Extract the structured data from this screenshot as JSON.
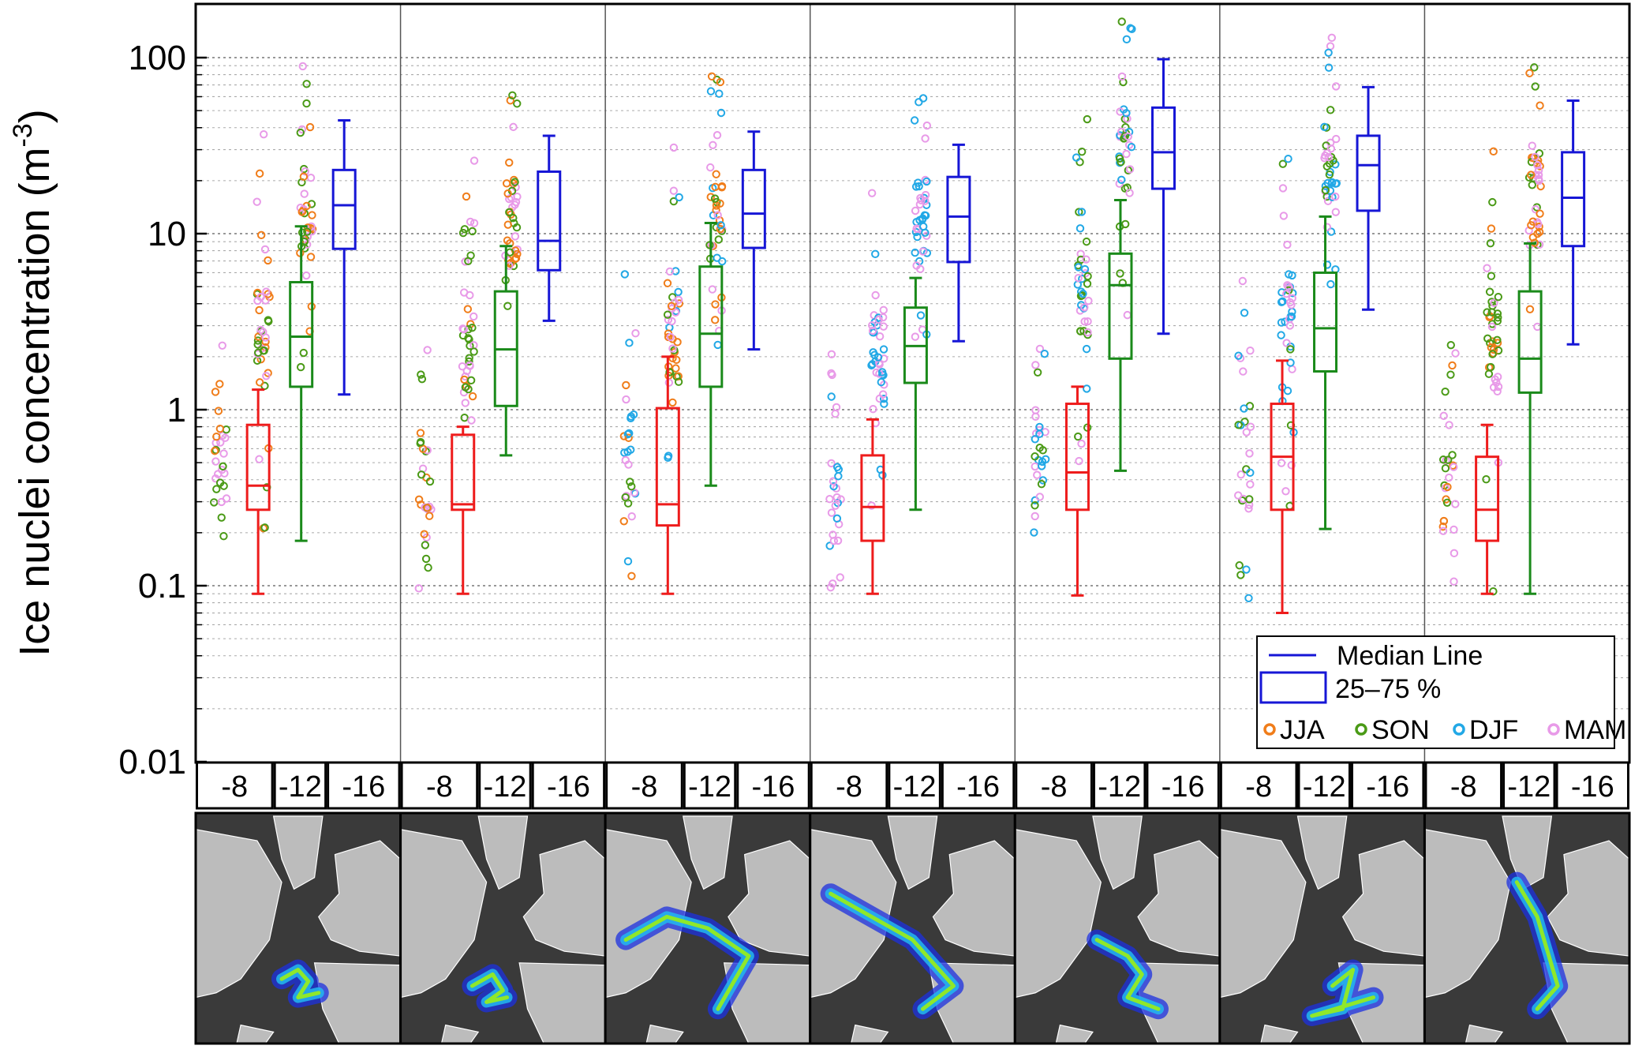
{
  "chart_data": {
    "type": "box",
    "ylabel": "Ice nuclei concentration (m",
    "ylabel_sup": "-3",
    "ylabel_end": ")",
    "yscale": "log",
    "ylim": [
      0.01,
      200
    ],
    "yticks": [
      {
        "value": 0.01,
        "label": "0.01"
      },
      {
        "value": 0.1,
        "label": "0.1"
      },
      {
        "value": 1,
        "label": "1"
      },
      {
        "value": 10,
        "label": "10"
      },
      {
        "value": 100,
        "label": "100"
      }
    ],
    "grid": "dotted horizontal at major and minor decades",
    "categories": [
      "-8",
      "-12",
      "-16"
    ],
    "category_colors": [
      "#ee1c1c",
      "#1a8a1a",
      "#1616d6"
    ],
    "season_colors": {
      "JJA": "#f07d1a",
      "SON": "#4a9a16",
      "DJF": "#22a8e6",
      "MAM": "#e89ae8"
    },
    "legend": {
      "position": "bottom-right",
      "median_label": "Median Line",
      "box_label": "25–75 %",
      "seasons": [
        "JJA",
        "SON",
        "DJF",
        "MAM"
      ]
    },
    "panels": [
      {
        "boxes": [
          {
            "min": 0.09,
            "q1": 0.27,
            "median": 0.37,
            "q3": 0.82,
            "max": 1.3
          },
          {
            "min": 0.18,
            "q1": 1.35,
            "median": 2.6,
            "q3": 5.3,
            "max": 11
          },
          {
            "min": 1.22,
            "q1": 8.2,
            "median": 14.5,
            "q3": 23,
            "max": 44
          }
        ],
        "season_mix": [
          "JJA",
          "SON",
          "MAM"
        ]
      },
      {
        "boxes": [
          {
            "min": 0.09,
            "q1": 0.27,
            "median": 0.29,
            "q3": 0.72,
            "max": 0.8
          },
          {
            "min": 0.55,
            "q1": 1.05,
            "median": 2.2,
            "q3": 4.7,
            "max": 8.5
          },
          {
            "min": 3.2,
            "q1": 6.2,
            "median": 9.1,
            "q3": 22.5,
            "max": 36
          }
        ],
        "season_mix": [
          "JJA",
          "SON",
          "MAM"
        ]
      },
      {
        "boxes": [
          {
            "min": 0.09,
            "q1": 0.22,
            "median": 0.29,
            "q3": 1.02,
            "max": 2.0
          },
          {
            "min": 0.37,
            "q1": 1.35,
            "median": 2.7,
            "q3": 6.5,
            "max": 11.5
          },
          {
            "min": 2.2,
            "q1": 8.3,
            "median": 13,
            "q3": 23,
            "max": 38
          }
        ],
        "season_mix": [
          "JJA",
          "SON",
          "DJF",
          "MAM"
        ]
      },
      {
        "boxes": [
          {
            "min": 0.09,
            "q1": 0.18,
            "median": 0.28,
            "q3": 0.55,
            "max": 0.88
          },
          {
            "min": 0.27,
            "q1": 1.42,
            "median": 2.3,
            "q3": 3.8,
            "max": 5.6
          },
          {
            "min": 2.45,
            "q1": 6.9,
            "median": 12.5,
            "q3": 21,
            "max": 32
          }
        ],
        "season_mix": [
          "DJF",
          "MAM"
        ]
      },
      {
        "boxes": [
          {
            "min": 0.088,
            "q1": 0.27,
            "median": 0.44,
            "q3": 1.08,
            "max": 1.35
          },
          {
            "min": 0.45,
            "q1": 1.95,
            "median": 5.1,
            "q3": 7.7,
            "max": 15.5
          },
          {
            "min": 2.7,
            "q1": 18,
            "median": 29,
            "q3": 52,
            "max": 98
          }
        ],
        "season_mix": [
          "SON",
          "DJF",
          "MAM"
        ]
      },
      {
        "boxes": [
          {
            "min": 0.07,
            "q1": 0.27,
            "median": 0.54,
            "q3": 1.08,
            "max": 1.9
          },
          {
            "min": 0.21,
            "q1": 1.65,
            "median": 2.9,
            "q3": 6.0,
            "max": 12.5
          },
          {
            "min": 3.7,
            "q1": 13.5,
            "median": 24.5,
            "q3": 36,
            "max": 68
          }
        ],
        "season_mix": [
          "SON",
          "DJF",
          "MAM"
        ]
      },
      {
        "boxes": [
          {
            "min": 0.09,
            "q1": 0.18,
            "median": 0.27,
            "q3": 0.54,
            "max": 0.82
          },
          {
            "min": 0.09,
            "q1": 1.25,
            "median": 1.95,
            "q3": 4.7,
            "max": 8.8
          },
          {
            "min": 2.35,
            "q1": 8.5,
            "median": 16,
            "q3": 29,
            "max": 57
          }
        ],
        "season_mix": [
          "JJA",
          "SON",
          "MAM"
        ]
      }
    ],
    "maps": {
      "ocean_color": "#3a3a3a",
      "land_color": "#bcbcbc",
      "border_color": "#ffffff",
      "plume_colors": [
        "#1c30e0",
        "#22b8f0",
        "#8fe82a"
      ]
    }
  }
}
